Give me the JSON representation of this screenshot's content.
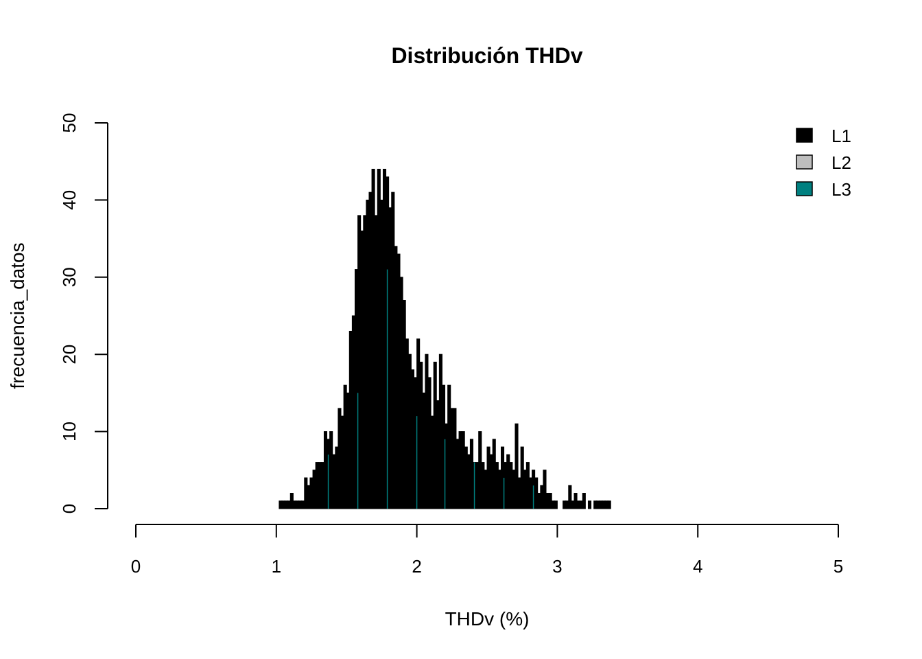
{
  "chart_data": {
    "type": "bar",
    "title": "Distribución THDv",
    "xlabel": "THDv (%)",
    "ylabel": "frecuencia_datos",
    "xlim": [
      0,
      5
    ],
    "ylim": [
      0,
      50
    ],
    "x_ticks": [
      "0",
      "1",
      "2",
      "3",
      "4",
      "5"
    ],
    "y_ticks": [
      "0",
      "10",
      "20",
      "30",
      "40",
      "50"
    ],
    "grid": false,
    "legend_position": "top-right",
    "series": [
      {
        "name": "L1",
        "color": "#000000",
        "x": [
          1.03,
          1.05,
          1.07,
          1.09,
          1.11,
          1.13,
          1.15,
          1.17,
          1.19,
          1.21,
          1.23,
          1.25,
          1.27,
          1.29,
          1.31,
          1.33,
          1.35,
          1.37,
          1.39,
          1.41,
          1.43,
          1.45,
          1.47,
          1.49,
          1.51,
          1.53,
          1.55,
          1.57,
          1.59,
          1.61,
          1.63,
          1.65,
          1.67,
          1.69,
          1.71,
          1.73,
          1.75,
          1.77,
          1.79,
          1.81,
          1.83,
          1.85,
          1.87,
          1.89,
          1.91,
          1.93,
          1.95,
          1.97,
          1.99,
          2.01,
          2.03,
          2.05,
          2.07,
          2.09,
          2.11,
          2.13,
          2.15,
          2.17,
          2.19,
          2.21,
          2.23,
          2.25,
          2.27,
          2.29,
          2.31,
          2.33,
          2.35,
          2.37,
          2.39,
          2.41,
          2.43,
          2.45,
          2.47,
          2.49,
          2.51,
          2.53,
          2.55,
          2.57,
          2.59,
          2.61,
          2.63,
          2.65,
          2.67,
          2.69,
          2.71,
          2.73,
          2.75,
          2.77,
          2.79,
          2.81,
          2.83,
          2.85,
          2.87,
          2.89,
          2.91,
          2.93,
          2.95,
          2.97,
          2.99,
          3.01,
          3.03,
          3.05,
          3.07,
          3.09,
          3.11,
          3.13,
          3.15,
          3.17,
          3.19,
          3.21,
          3.23,
          3.25,
          3.27,
          3.29,
          3.31,
          3.33,
          3.35,
          3.37
        ],
        "values": [
          1,
          1,
          1,
          1,
          2,
          1,
          1,
          1,
          1,
          4,
          3,
          4,
          5,
          6,
          6,
          6,
          10,
          9,
          10,
          7,
          8,
          13,
          12,
          16,
          15,
          23,
          25,
          31,
          38,
          36,
          38,
          40,
          41,
          44,
          38,
          44,
          40,
          44,
          43,
          39,
          41,
          34,
          33,
          30,
          27,
          22,
          20,
          18,
          17,
          22,
          19,
          15,
          20,
          17,
          12,
          19,
          14,
          20,
          16,
          11,
          16,
          13,
          13,
          9,
          10,
          10,
          8,
          7,
          9,
          6,
          6,
          10,
          6,
          5,
          8,
          7,
          9,
          6,
          5,
          8,
          6,
          7,
          6,
          5,
          11,
          4,
          8,
          5,
          6,
          4,
          5,
          4,
          2,
          3,
          5,
          2,
          2,
          1,
          1,
          0,
          0,
          1,
          1,
          3,
          1,
          2,
          1,
          1,
          2,
          0,
          1,
          0,
          1,
          1,
          1,
          1,
          1,
          1
        ]
      },
      {
        "name": "L2",
        "color": "#BEBEBE",
        "x": [],
        "values": []
      },
      {
        "name": "L3",
        "color": "#008080",
        "x": [
          1.37,
          1.58,
          1.79,
          2.0,
          2.2,
          2.41,
          2.62,
          2.83
        ],
        "values": [
          7,
          15,
          31,
          12,
          9,
          6,
          4,
          3
        ]
      }
    ]
  }
}
